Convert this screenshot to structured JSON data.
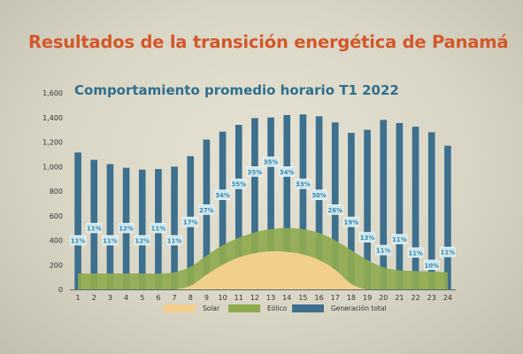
{
  "header": {
    "title": "Resultados de la transición energética de Panamá"
  },
  "chart_data": {
    "type": "bar",
    "title": "Comportamiento promedio horario T1 2022",
    "categories": [
      "1",
      "2",
      "3",
      "4",
      "5",
      "6",
      "7",
      "8",
      "9",
      "10",
      "11",
      "12",
      "13",
      "14",
      "15",
      "16",
      "17",
      "18",
      "19",
      "20",
      "21",
      "22",
      "23",
      "24"
    ],
    "ylim": [
      0,
      1600
    ],
    "yticks": [
      "0",
      "200",
      "400",
      "600",
      "800",
      "1,000",
      "1,200",
      "1,400",
      "1,600"
    ],
    "grid": false,
    "legend_position": "bottom-center",
    "series": [
      {
        "name": "Generación total",
        "kind": "bar",
        "color": "#3d6f8e",
        "values": [
          1115,
          1055,
          1020,
          990,
          975,
          980,
          1000,
          1085,
          1220,
          1285,
          1340,
          1395,
          1400,
          1420,
          1425,
          1410,
          1360,
          1275,
          1300,
          1380,
          1355,
          1325,
          1280,
          1170
        ]
      },
      {
        "name": "Eólico",
        "kind": "area",
        "color": "#8faa4f",
        "values": [
          130,
          130,
          130,
          130,
          130,
          130,
          140,
          185,
          275,
          360,
          420,
          465,
          490,
          500,
          490,
          460,
          400,
          320,
          240,
          180,
          155,
          150,
          145,
          140
        ]
      },
      {
        "name": "Solar",
        "kind": "area",
        "color": "#f2d08c",
        "values": [
          0,
          0,
          0,
          0,
          0,
          0,
          0,
          30,
          120,
          200,
          260,
          295,
          310,
          305,
          285,
          240,
          160,
          45,
          0,
          0,
          0,
          0,
          0,
          0
        ]
      }
    ],
    "share_labels": [
      "11%",
      "11%",
      "11%",
      "12%",
      "12%",
      "11%",
      "11%",
      "17%",
      "27%",
      "34%",
      "35%",
      "35%",
      "35%",
      "34%",
      "33%",
      "30%",
      "26%",
      "19%",
      "13%",
      "11%",
      "11%",
      "11%",
      "10%",
      "11%"
    ],
    "share_label_values": [
      400,
      500,
      400,
      500,
      400,
      500,
      400,
      550,
      650,
      770,
      860,
      960,
      1040,
      960,
      860,
      770,
      650,
      550,
      425,
      320,
      410,
      300,
      200,
      305
    ]
  },
  "colors": {
    "title": "#d4572a",
    "subtitle": "#2f6f8d",
    "label_box": "#cfe7ee",
    "label_text": "#3f8aa8"
  }
}
